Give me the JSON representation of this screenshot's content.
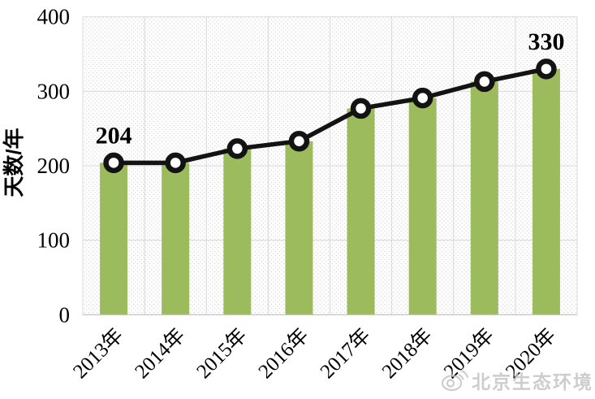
{
  "page": {
    "background": "#ffffff"
  },
  "watermark": {
    "icon": "weibo-icon",
    "text": "北京生态环境"
  },
  "chart_data": {
    "type": "bar",
    "overlay": "line",
    "title": "",
    "xlabel": "",
    "ylabel": "天数/年",
    "ylim": [
      0,
      400
    ],
    "yticks": [
      0,
      100,
      200,
      300,
      400
    ],
    "grid": true,
    "plot_background": "light-diagonal-hatch",
    "legend": "none",
    "categories": [
      "2013年",
      "2014年",
      "2015年",
      "2016年",
      "2017年",
      "2018年",
      "2019年",
      "2020年"
    ],
    "values": [
      204,
      204,
      223,
      233,
      277,
      291,
      313,
      330
    ],
    "series": [
      {
        "name": "bars",
        "type": "bar",
        "values": [
          204,
          204,
          223,
          233,
          277,
          291,
          313,
          330
        ]
      },
      {
        "name": "line",
        "type": "line",
        "values": [
          204,
          204,
          223,
          233,
          277,
          291,
          313,
          330
        ]
      }
    ],
    "data_labels": [
      {
        "category": "2013年",
        "value": 204,
        "text": "204"
      },
      {
        "category": "2020年",
        "value": 330,
        "text": "330"
      }
    ],
    "colors": {
      "bar": "#9CBB5C",
      "line": "#131313",
      "marker_fill": "#ffffff",
      "grid": "#d9d9d9",
      "axis": "#bfbfbf",
      "hatch": "#d4d4d4",
      "text": "#000000"
    }
  }
}
